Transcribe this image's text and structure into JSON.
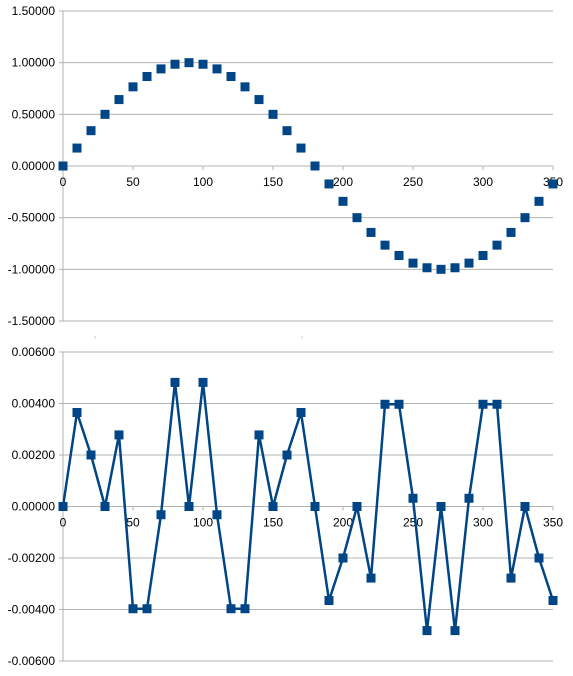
{
  "chart_data": [
    {
      "type": "scatter",
      "title": "",
      "xlabel": "",
      "ylabel": "",
      "xlim": [
        0,
        350
      ],
      "ylim": [
        -1.5,
        1.5
      ],
      "x_ticks": [
        "0",
        "50",
        "100",
        "150",
        "200",
        "250",
        "300",
        "350"
      ],
      "y_ticks": [
        "1.50000",
        "1.00000",
        "0.50000",
        "0.00000",
        "-0.50000",
        "-1.00000",
        "-1.50000"
      ],
      "grid": "horizontal",
      "series": [
        {
          "marker": "square",
          "line": false,
          "color": "#004586",
          "x": [
            0,
            10,
            20,
            30,
            40,
            50,
            60,
            70,
            80,
            90,
            100,
            110,
            120,
            130,
            140,
            150,
            160,
            170,
            180,
            190,
            200,
            210,
            220,
            230,
            240,
            250,
            260,
            270,
            280,
            290,
            300,
            310,
            320,
            330,
            340,
            350
          ],
          "y": [
            0,
            0.1736,
            0.342,
            0.5,
            0.6428,
            0.766,
            0.866,
            0.9397,
            0.9848,
            1,
            0.9848,
            0.9397,
            0.866,
            0.766,
            0.6428,
            0.5,
            0.342,
            0.1736,
            0,
            -0.1736,
            -0.342,
            -0.5,
            -0.6428,
            -0.766,
            -0.866,
            -0.9397,
            -0.9848,
            -1,
            -0.9848,
            -0.9397,
            -0.866,
            -0.766,
            -0.6428,
            -0.5,
            -0.342,
            -0.1736
          ]
        }
      ]
    },
    {
      "type": "line",
      "title": "",
      "xlabel": "",
      "ylabel": "",
      "xlim": [
        0,
        350
      ],
      "ylim": [
        -0.006,
        0.006
      ],
      "x_ticks": [
        "0",
        "50",
        "100",
        "150",
        "200",
        "250",
        "300",
        "350"
      ],
      "y_ticks": [
        "0.00600",
        "0.00400",
        "0.00200",
        "0.00000",
        "-0.00200",
        "-0.00400",
        "-0.00600"
      ],
      "grid": "horizontal",
      "series": [
        {
          "marker": "square",
          "line": true,
          "color": "#004586",
          "x": [
            0,
            10,
            20,
            30,
            40,
            50,
            60,
            70,
            80,
            90,
            100,
            110,
            120,
            130,
            140,
            150,
            160,
            170,
            180,
            190,
            200,
            210,
            220,
            230,
            240,
            250,
            260,
            270,
            280,
            290,
            300,
            310,
            320,
            330,
            340,
            350
          ],
          "y": [
            0,
            0.00365,
            0.002,
            0,
            0.00278,
            -0.00397,
            -0.00397,
            -0.00032,
            0.00482,
            0,
            0.00482,
            -0.00032,
            -0.00397,
            -0.00397,
            0.00278,
            0,
            0.002,
            0.00365,
            0,
            -0.00365,
            -0.002,
            0,
            -0.00278,
            0.00397,
            0.00397,
            0.00032,
            -0.00482,
            0,
            -0.00482,
            0.00032,
            0.00397,
            0.00397,
            -0.00278,
            0,
            -0.002,
            -0.00365
          ]
        }
      ]
    }
  ]
}
